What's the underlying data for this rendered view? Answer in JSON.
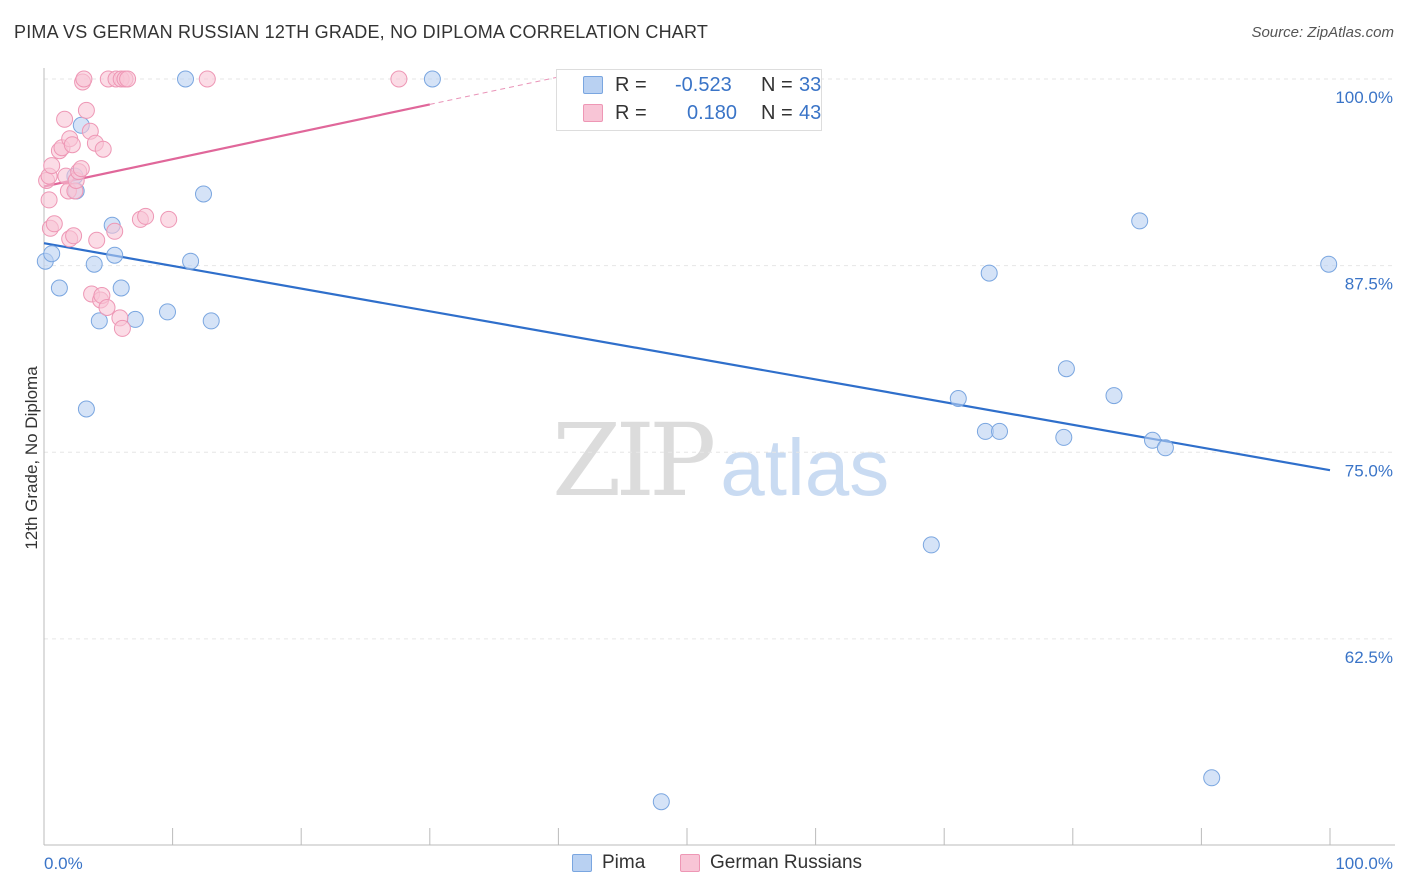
{
  "title": "PIMA VS GERMAN RUSSIAN 12TH GRADE, NO DIPLOMA CORRELATION CHART",
  "source": "Source: ZipAtlas.com",
  "watermark": {
    "zip": "ZIP",
    "atlas": "atlas"
  },
  "colors": {
    "pima_fill": "#b9d1f2",
    "pima_stroke": "#7aa6e0",
    "pima_line": "#2f6fcb",
    "gr_fill": "#f8c5d6",
    "gr_stroke": "#ee97b5",
    "gr_line": "#e0679a",
    "tick_label": "#3a74c7",
    "grid": "#e6e6e6"
  },
  "legend": {
    "pima": {
      "r_label": "R =",
      "r_value": "-0.523",
      "n_label": "N =",
      "n_value": "33"
    },
    "german_russians": {
      "r_label": "R =",
      "r_value": "0.180",
      "n_label": "N =",
      "n_value": "43"
    }
  },
  "chart_data": {
    "type": "scatter",
    "title": "PIMA VS GERMAN RUSSIAN 12TH GRADE, NO DIPLOMA CORRELATION CHART",
    "xlabel": "",
    "ylabel": "12th Grade, No Diploma",
    "xlim": [
      0,
      100
    ],
    "ylim": [
      51,
      102.3
    ],
    "x_tick_labels": [
      "0.0%",
      "100.0%"
    ],
    "y_ticks": [
      62.5,
      75.0,
      87.5,
      100.0
    ],
    "y_tick_labels": [
      "62.5%",
      "75.0%",
      "87.5%",
      "100.0%"
    ],
    "series": [
      {
        "name": "Pima",
        "points": [
          [
            0.1,
            87.8
          ],
          [
            0.6,
            88.3
          ],
          [
            1.2,
            86.0
          ],
          [
            2.4,
            93.5
          ],
          [
            2.5,
            92.5
          ],
          [
            2.9,
            96.9
          ],
          [
            3.3,
            77.9
          ],
          [
            3.9,
            87.6
          ],
          [
            4.3,
            83.8
          ],
          [
            5.3,
            90.2
          ],
          [
            5.5,
            88.2
          ],
          [
            6.0,
            86.0
          ],
          [
            7.1,
            83.9
          ],
          [
            9.6,
            84.4
          ],
          [
            11.0,
            100.0
          ],
          [
            11.4,
            87.8
          ],
          [
            12.4,
            92.3
          ],
          [
            13.0,
            83.8
          ],
          [
            30.2,
            100.0
          ],
          [
            48.0,
            51.6
          ],
          [
            69.0,
            68.8
          ],
          [
            71.1,
            78.6
          ],
          [
            73.2,
            76.4
          ],
          [
            73.5,
            87.0
          ],
          [
            74.3,
            76.4
          ],
          [
            79.3,
            76.0
          ],
          [
            79.5,
            80.6
          ],
          [
            83.2,
            78.8
          ],
          [
            85.2,
            90.5
          ],
          [
            86.2,
            75.8
          ],
          [
            87.2,
            75.3
          ],
          [
            90.8,
            53.2
          ],
          [
            99.9,
            87.6
          ]
        ],
        "trend": {
          "x": [
            0,
            100
          ],
          "y": [
            89.0,
            73.8
          ],
          "dashed": false
        }
      },
      {
        "name": "German Russians",
        "points": [
          [
            0.2,
            93.2
          ],
          [
            0.4,
            91.9
          ],
          [
            0.4,
            93.5
          ],
          [
            0.5,
            90.0
          ],
          [
            0.6,
            94.2
          ],
          [
            0.8,
            90.3
          ],
          [
            1.2,
            95.2
          ],
          [
            1.4,
            95.4
          ],
          [
            1.6,
            97.3
          ],
          [
            1.7,
            93.5
          ],
          [
            1.9,
            92.5
          ],
          [
            2.0,
            89.3
          ],
          [
            2.0,
            96.0
          ],
          [
            2.2,
            95.6
          ],
          [
            2.3,
            89.5
          ],
          [
            2.4,
            92.5
          ],
          [
            2.5,
            93.2
          ],
          [
            2.7,
            93.8
          ],
          [
            2.9,
            94.0
          ],
          [
            3.0,
            99.8
          ],
          [
            3.1,
            100.0
          ],
          [
            3.3,
            97.9
          ],
          [
            3.6,
            96.5
          ],
          [
            3.7,
            85.6
          ],
          [
            4.0,
            95.7
          ],
          [
            4.1,
            89.2
          ],
          [
            4.4,
            85.2
          ],
          [
            4.5,
            85.5
          ],
          [
            4.6,
            95.3
          ],
          [
            4.9,
            84.7
          ],
          [
            5.0,
            100.0
          ],
          [
            5.5,
            89.8
          ],
          [
            5.6,
            100.0
          ],
          [
            5.9,
            84.0
          ],
          [
            6.0,
            100.0
          ],
          [
            6.1,
            83.3
          ],
          [
            6.3,
            100.0
          ],
          [
            6.5,
            100.0
          ],
          [
            7.5,
            90.6
          ],
          [
            7.9,
            90.8
          ],
          [
            9.7,
            90.6
          ],
          [
            12.7,
            100.0
          ],
          [
            27.6,
            100.0
          ]
        ],
        "trend": {
          "x": [
            0,
            30
          ],
          "y": [
            92.8,
            98.3
          ],
          "dashed": false,
          "dashed_extension_to_x": 40
        }
      }
    ],
    "legend": [
      "Pima",
      "German Russians"
    ],
    "legend_position": "bottom-center",
    "grid": true
  }
}
